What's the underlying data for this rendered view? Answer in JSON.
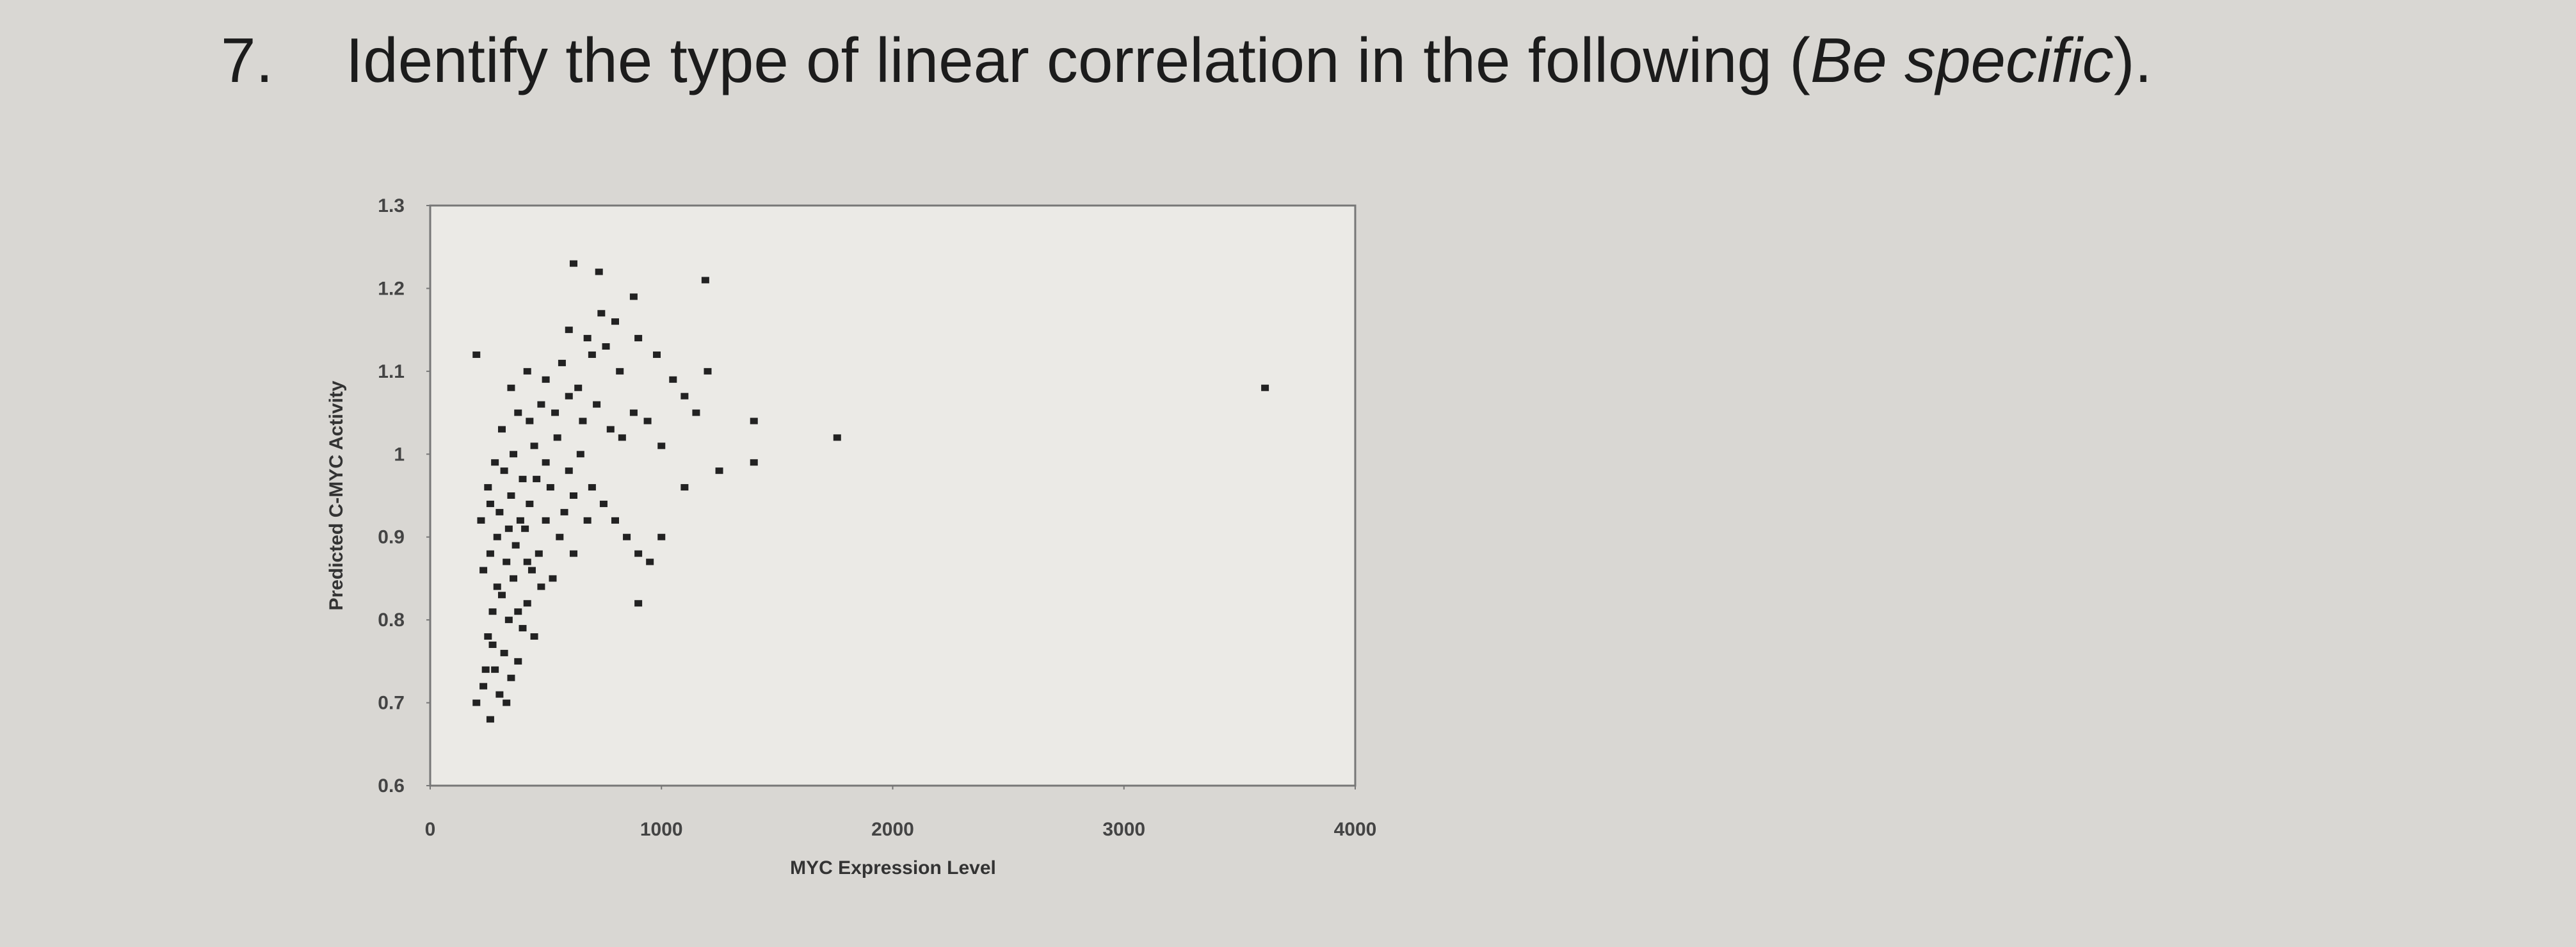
{
  "question": {
    "number": "7.",
    "text": "Identify the type of linear correlation in the following (",
    "emphasis": "Be specific",
    "end": ")."
  },
  "chart_data": {
    "type": "scatter",
    "x_label": "MYC Expression Level",
    "y_label": "Predicted C-MYC Activity",
    "xlim": [
      0,
      4000
    ],
    "xticks": [
      0,
      1000,
      2000,
      3000,
      4000
    ],
    "ylim": [
      0.6,
      1.3
    ],
    "yticks": [
      0.6,
      0.7,
      0.8,
      0.9,
      1,
      1.1,
      1.2,
      1.3
    ],
    "color": "#222222",
    "x": [
      200,
      230,
      260,
      280,
      300,
      320,
      250,
      350,
      380,
      400,
      270,
      310,
      340,
      360,
      420,
      450,
      480,
      230,
      260,
      290,
      330,
      370,
      410,
      440,
      470,
      500,
      530,
      560,
      300,
      350,
      390,
      430,
      460,
      520,
      580,
      620,
      250,
      280,
      320,
      360,
      400,
      450,
      500,
      550,
      600,
      650,
      700,
      750,
      800,
      850,
      900,
      950,
      310,
      380,
      430,
      480,
      540,
      600,
      660,
      720,
      780,
      830,
      880,
      940,
      1000,
      350,
      420,
      500,
      570,
      640,
      700,
      760,
      820,
      900,
      980,
      1050,
      1100,
      600,
      680,
      740,
      800,
      880,
      1200,
      1150,
      1400,
      1400,
      1760,
      3610,
      200,
      620,
      730,
      1190,
      900,
      1000,
      1100,
      1250,
      240,
      270,
      330,
      290,
      380,
      420,
      220,
      260,
      340,
      620,
      680
    ],
    "values": [
      0.7,
      0.72,
      0.68,
      0.74,
      0.71,
      0.76,
      0.78,
      0.73,
      0.75,
      0.79,
      0.81,
      0.83,
      0.8,
      0.85,
      0.82,
      0.78,
      0.84,
      0.86,
      0.88,
      0.9,
      0.87,
      0.89,
      0.91,
      0.86,
      0.88,
      0.92,
      0.85,
      0.9,
      0.93,
      0.95,
      0.92,
      0.94,
      0.97,
      0.96,
      0.93,
      0.95,
      0.96,
      0.99,
      0.98,
      1.0,
      0.97,
      1.01,
      0.99,
      1.02,
      0.98,
      1.0,
      0.96,
      0.94,
      0.92,
      0.9,
      0.88,
      0.87,
      1.03,
      1.05,
      1.04,
      1.06,
      1.05,
      1.07,
      1.04,
      1.06,
      1.03,
      1.02,
      1.05,
      1.04,
      1.01,
      1.08,
      1.1,
      1.09,
      1.11,
      1.08,
      1.12,
      1.13,
      1.1,
      1.14,
      1.12,
      1.09,
      1.07,
      1.15,
      1.14,
      1.17,
      1.16,
      1.19,
      1.1,
      1.05,
      0.99,
      1.04,
      1.02,
      1.08,
      1.12,
      1.23,
      1.22,
      1.21,
      0.82,
      0.9,
      0.96,
      0.98,
      0.74,
      0.77,
      0.7,
      0.84,
      0.81,
      0.87,
      0.92,
      0.94,
      0.91,
      0.88,
      0.92
    ]
  }
}
